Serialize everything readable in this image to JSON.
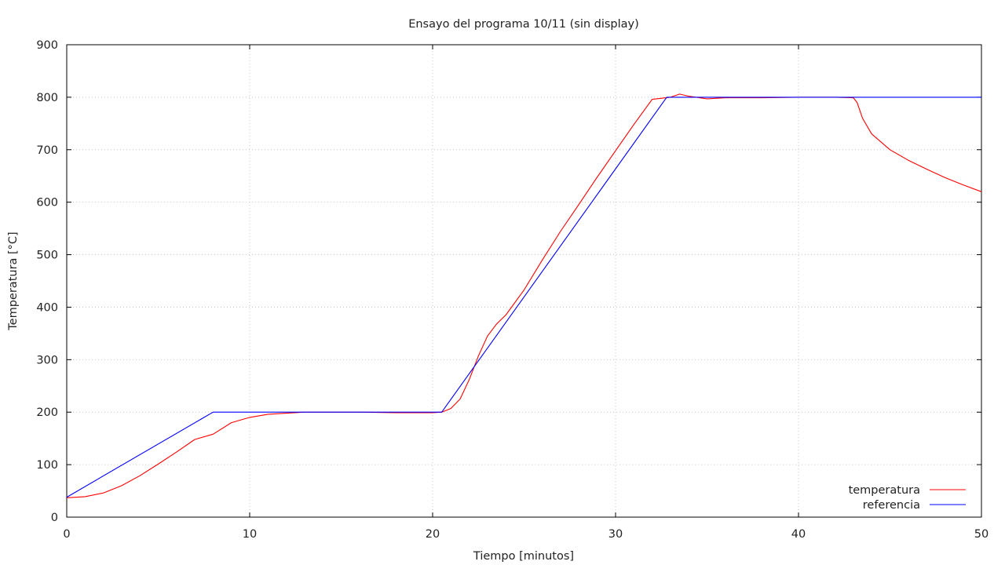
{
  "chart_data": {
    "type": "line",
    "title": "Ensayo del programa 10/11 (sin display)",
    "xlabel": "Tiempo [minutos]",
    "ylabel": "Temperatura [°C]",
    "xlim": [
      0,
      50
    ],
    "ylim": [
      0,
      900
    ],
    "xticks": [
      0,
      10,
      20,
      30,
      40,
      50
    ],
    "yticks": [
      0,
      100,
      200,
      300,
      400,
      500,
      600,
      700,
      800,
      900
    ],
    "grid": true,
    "legend_position": "bottom-right",
    "series": [
      {
        "name": "temperatura",
        "color": "#ff0000",
        "x": [
          0,
          1,
          2,
          3,
          4,
          5,
          6,
          7,
          8,
          9,
          10,
          11,
          12,
          13,
          14,
          16,
          18,
          20,
          20.5,
          21,
          21.5,
          22,
          22.5,
          23,
          23.5,
          24,
          25,
          26,
          27,
          28,
          29,
          30,
          31,
          32,
          33,
          33.5,
          34,
          35,
          36,
          38,
          40,
          42,
          43,
          43.2,
          43.5,
          44,
          45,
          46,
          47,
          48,
          49,
          50
        ],
        "y": [
          37,
          39,
          46,
          60,
          79,
          101,
          124,
          148,
          158,
          180,
          190,
          196,
          198,
          200,
          200,
          200,
          199,
          199,
          200,
          207,
          225,
          262,
          307,
          345,
          368,
          385,
          433,
          490,
          545,
          596,
          648,
          698,
          748,
          796,
          800,
          806,
          802,
          797,
          799,
          799,
          800,
          800,
          799,
          790,
          760,
          730,
          700,
          680,
          663,
          647,
          633,
          620
        ]
      },
      {
        "name": "referencia",
        "color": "#0000ff",
        "x": [
          0,
          8,
          20.5,
          32.8,
          50
        ],
        "y": [
          38,
          200,
          200,
          800,
          800
        ]
      }
    ]
  }
}
